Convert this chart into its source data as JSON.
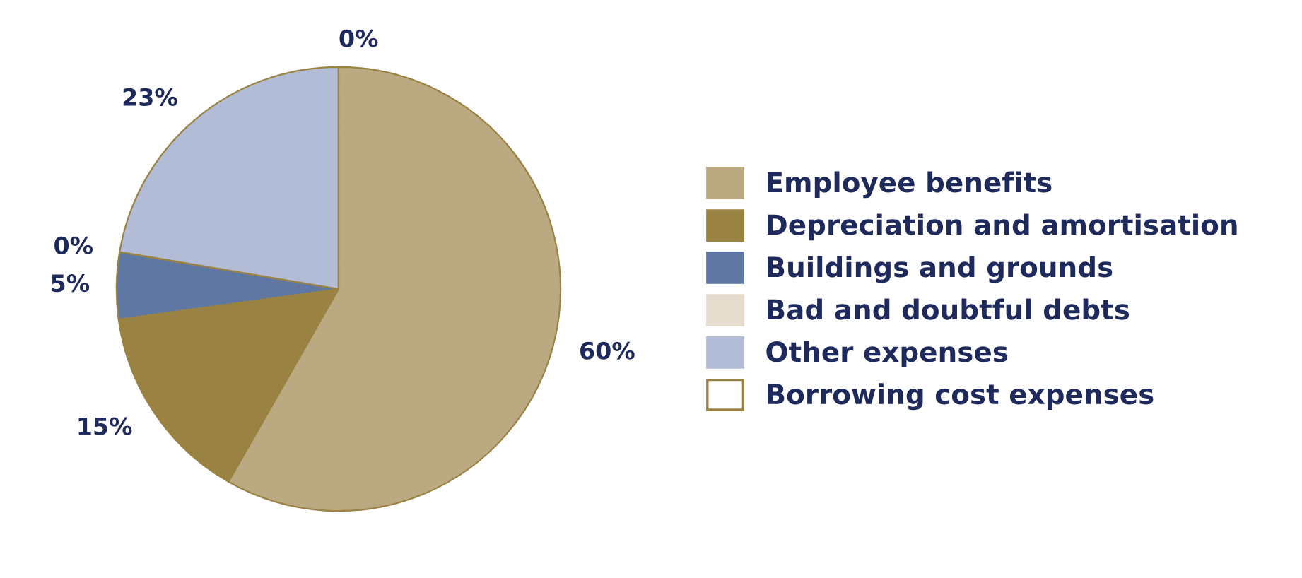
{
  "chart_data": {
    "type": "pie",
    "categories": [
      "Employee benefits",
      "Depreciation and amortisation",
      "Buildings and grounds",
      "Bad and doubtful debts",
      "Other expenses",
      "Borrowing cost expenses"
    ],
    "values": [
      60,
      15,
      5,
      0,
      23,
      0
    ],
    "value_labels": [
      "60%",
      "15%",
      "5%",
      "0%",
      "23%",
      "0%"
    ],
    "colors": [
      "#bba982",
      "#9a8243",
      "#5f78a3",
      "#e5dccd",
      "#b2bcd6",
      "#ffffff"
    ],
    "legend": "right"
  }
}
